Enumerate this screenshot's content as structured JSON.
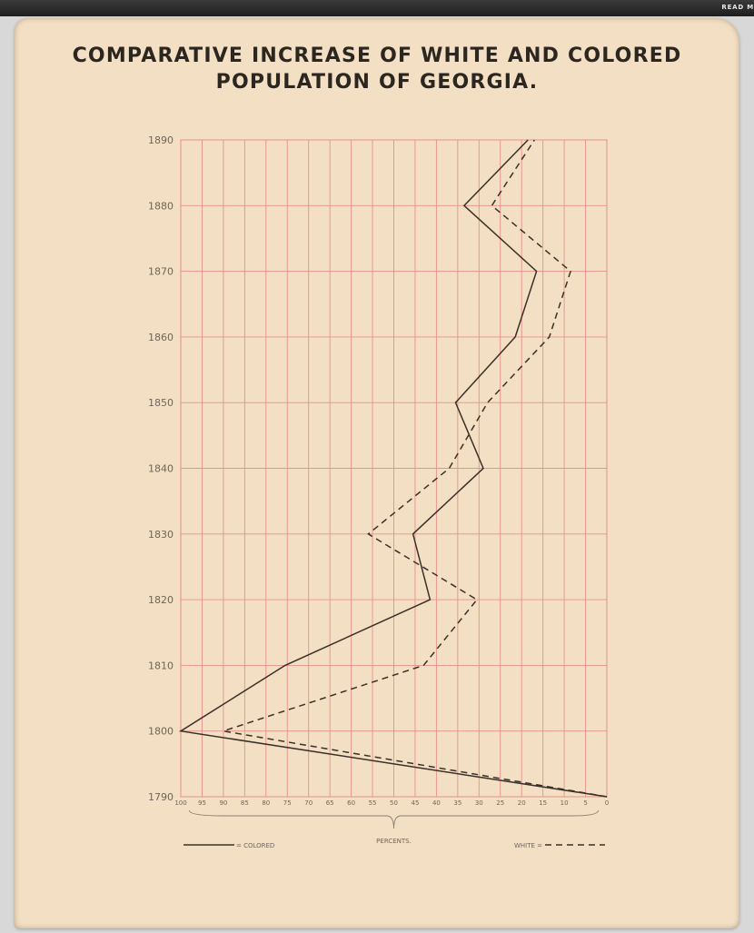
{
  "header": {
    "link_label": "READ M"
  },
  "chart_data": {
    "type": "line",
    "title": [
      "COMPARATIVE INCREASE OF WHITE AND COLORED",
      "POPULATION OF GEORGIA."
    ],
    "xlabel": "PERCENTS.",
    "x_axis_reversed": true,
    "xlim": [
      0,
      100
    ],
    "xticks": [
      100,
      95,
      90,
      85,
      80,
      75,
      70,
      65,
      60,
      55,
      50,
      45,
      40,
      35,
      30,
      25,
      20,
      15,
      10,
      5,
      0
    ],
    "y": [
      1790,
      1800,
      1810,
      1820,
      1830,
      1840,
      1850,
      1860,
      1870,
      1880,
      1890
    ],
    "ylim": [
      1790,
      1890
    ],
    "grid": true,
    "grid_color": "#e8908c",
    "series": [
      {
        "name": "COLORED",
        "style": "solid",
        "color": "#3a3028",
        "values": [
          0,
          100,
          75.5,
          41.5,
          45.5,
          29,
          35.5,
          21.5,
          16.5,
          33.5,
          18.5
        ]
      },
      {
        "name": "WHITE",
        "style": "dashed",
        "color": "#3a3028",
        "values": [
          0,
          90,
          43,
          30.5,
          56,
          37,
          28,
          13.5,
          8.5,
          27,
          17
        ]
      }
    ],
    "legend": {
      "placement": "bottom",
      "colored_label": "= COLORED",
      "white_label": "WHITE ="
    }
  }
}
